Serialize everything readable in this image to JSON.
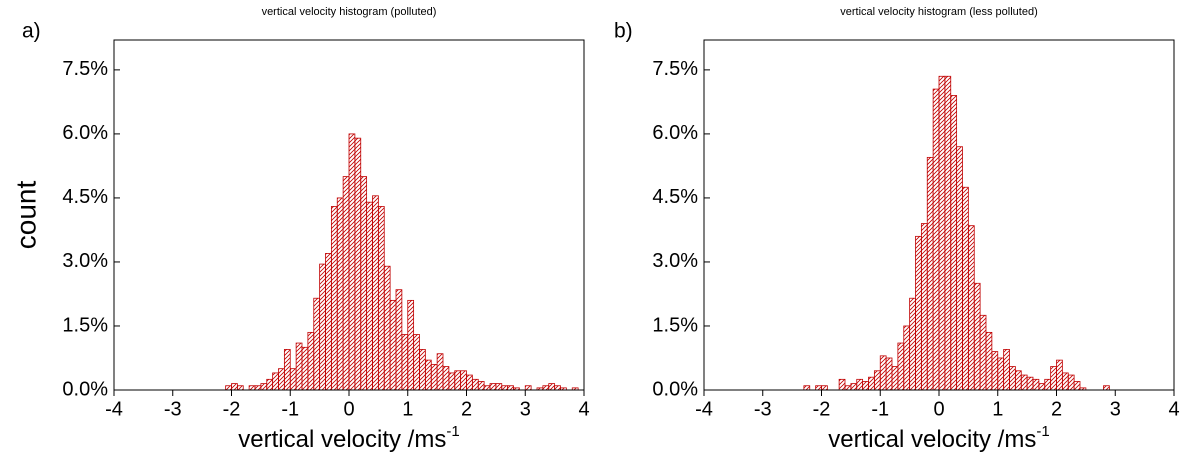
{
  "chart_data": [
    {
      "type": "histogram",
      "panel_label": "a)",
      "title": "vertical velocity histogram (polluted)",
      "xlabel": "vertical velocity /ms",
      "xlabel_sup": "-1",
      "ylabel": "count",
      "color": "#c00000",
      "xlim": [
        -4,
        4
      ],
      "ylim": [
        0,
        8.2
      ],
      "xticks": [
        -4,
        -3,
        -2,
        -1,
        0,
        1,
        2,
        3,
        4
      ],
      "yticks": [
        {
          "value": 0,
          "label": "0.0%"
        },
        {
          "value": 1.5,
          "label": "1.5%"
        },
        {
          "value": 3,
          "label": "3.0%"
        },
        {
          "value": 4.5,
          "label": "4.5%"
        },
        {
          "value": 6,
          "label": "6.0%"
        },
        {
          "value": 7.5,
          "label": "7.5%"
        }
      ],
      "bins": [
        -2.1,
        -2.0,
        -1.9,
        -1.8,
        -1.7,
        -1.6,
        -1.5,
        -1.4,
        -1.3,
        -1.2,
        -1.1,
        -1.0,
        -0.9,
        -0.8,
        -0.7,
        -0.6,
        -0.5,
        -0.4,
        -0.3,
        -0.2,
        -0.1,
        0.0,
        0.1,
        0.2,
        0.3,
        0.4,
        0.5,
        0.6,
        0.7,
        0.8,
        0.9,
        1.0,
        1.1,
        1.2,
        1.3,
        1.4,
        1.5,
        1.6,
        1.7,
        1.8,
        1.9,
        2.0,
        2.1,
        2.2,
        2.3,
        2.4,
        2.5,
        2.6,
        2.7,
        2.8,
        2.9,
        3.0,
        3.1,
        3.2,
        3.3,
        3.4,
        3.5,
        3.6,
        3.7,
        3.8,
        3.9,
        4.0
      ],
      "counts": [
        0.1,
        0.15,
        0.1,
        0,
        0.1,
        0.1,
        0.15,
        0.25,
        0.4,
        0.5,
        0.95,
        0.5,
        1.1,
        1.0,
        1.35,
        2.15,
        2.95,
        3.2,
        4.3,
        4.5,
        5.0,
        6.0,
        5.9,
        5.0,
        4.4,
        4.55,
        4.3,
        2.9,
        2.1,
        2.35,
        1.3,
        2.1,
        1.3,
        0.95,
        0.7,
        0.6,
        0.85,
        0.55,
        0.4,
        0.45,
        0.45,
        0.35,
        0.25,
        0.2,
        0.1,
        0.15,
        0.15,
        0.1,
        0.1,
        0.05,
        0,
        0.1,
        0,
        0.05,
        0.1,
        0.15,
        0.1,
        0.05,
        0,
        0.05,
        0
      ]
    },
    {
      "type": "histogram",
      "panel_label": "b)",
      "title": "vertical velocity histogram (less polluted)",
      "xlabel": "vertical velocity /ms",
      "xlabel_sup": "-1",
      "color": "#c00000",
      "xlim": [
        -4,
        4
      ],
      "ylim": [
        0,
        8.2
      ],
      "xticks": [
        -4,
        -3,
        -2,
        -1,
        0,
        1,
        2,
        3,
        4
      ],
      "yticks": [
        {
          "value": 0,
          "label": "0.0%"
        },
        {
          "value": 1.5,
          "label": "1.5%"
        },
        {
          "value": 3,
          "label": "3.0%"
        },
        {
          "value": 4.5,
          "label": "4.5%"
        },
        {
          "value": 6,
          "label": "6.0%"
        },
        {
          "value": 7.5,
          "label": "7.5%"
        }
      ],
      "bins": [
        -2.3,
        -2.2,
        -2.1,
        -2.0,
        -1.9,
        -1.8,
        -1.7,
        -1.6,
        -1.5,
        -1.4,
        -1.3,
        -1.2,
        -1.1,
        -1.0,
        -0.9,
        -0.8,
        -0.7,
        -0.6,
        -0.5,
        -0.4,
        -0.3,
        -0.2,
        -0.1,
        0.0,
        0.1,
        0.2,
        0.3,
        0.4,
        0.5,
        0.6,
        0.7,
        0.8,
        0.9,
        1.0,
        1.1,
        1.2,
        1.3,
        1.4,
        1.5,
        1.6,
        1.7,
        1.8,
        1.9,
        2.0,
        2.1,
        2.2,
        2.3,
        2.4,
        2.5,
        2.6,
        2.7,
        2.8,
        2.9
      ],
      "counts": [
        0.1,
        0,
        0.1,
        0.1,
        0,
        0,
        0.25,
        0.1,
        0.15,
        0.25,
        0.2,
        0.3,
        0.45,
        0.8,
        0.75,
        0.55,
        1.1,
        1.5,
        2.15,
        3.6,
        3.9,
        5.45,
        7.05,
        7.35,
        7.35,
        6.9,
        5.7,
        4.75,
        3.85,
        2.5,
        1.75,
        1.35,
        0.9,
        0.75,
        0.95,
        0.55,
        0.45,
        0.35,
        0.3,
        0.25,
        0.15,
        0.25,
        0.55,
        0.7,
        0.4,
        0.35,
        0.2,
        0.05,
        0,
        0,
        0,
        0.1
      ]
    }
  ]
}
